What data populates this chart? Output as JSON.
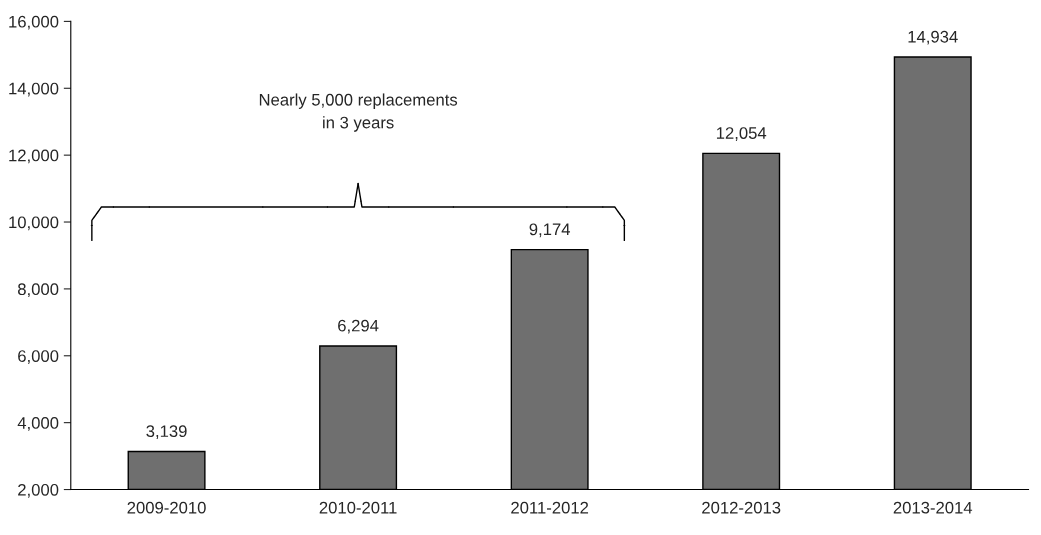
{
  "chart_data": {
    "type": "bar",
    "categories": [
      "2009-2010",
      "2010-2011",
      "2011-2012",
      "2012-2013",
      "2013-2014"
    ],
    "values": [
      3139,
      6294,
      9174,
      12054,
      14934
    ],
    "value_labels": [
      "3,139",
      "6,294",
      "9,174",
      "12,054",
      "14,934"
    ],
    "color": "#6f6f6f",
    "ylim": [
      2000,
      16000
    ],
    "yticks": [
      {
        "value": 2000,
        "label": "2,000"
      },
      {
        "value": 4000,
        "label": "4,000"
      },
      {
        "value": 6000,
        "label": "6,000"
      },
      {
        "value": 8000,
        "label": "8,000"
      },
      {
        "value": 10000,
        "label": "10,000"
      },
      {
        "value": 12000,
        "label": "12,000"
      },
      {
        "value": 14000,
        "label": "14,000"
      },
      {
        "value": 16000,
        "label": "16,000"
      }
    ],
    "annotations": [
      "Nearly 5,000 replacements\nin 3 years"
    ],
    "grid": false,
    "legend": false
  }
}
